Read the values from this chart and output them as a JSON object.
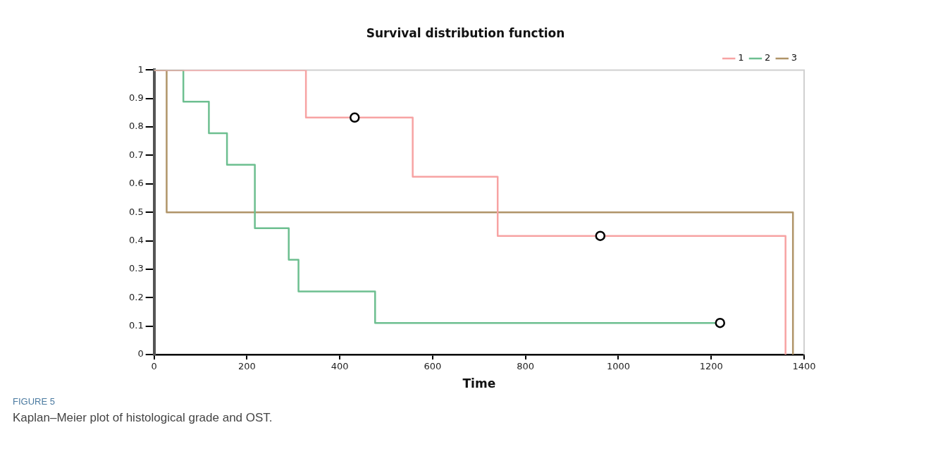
{
  "chart_data": {
    "type": "step",
    "title": "Survival distribution function",
    "xlabel": "Time",
    "annotations": [
      "FIGURE 5",
      "Kaplan–Meier plot of histological grade and OST."
    ],
    "series": [
      {
        "name": "1",
        "color": "#f7a3a3",
        "x": [
          0,
          327,
          557,
          740,
          1360
        ],
        "values": [
          1,
          0.833,
          0.625,
          0.417,
          0
        ]
      },
      {
        "name": "2",
        "color": "#6dbf90",
        "x": [
          0,
          63,
          118,
          157,
          217,
          290,
          311,
          476,
          1219
        ],
        "values": [
          1,
          0.889,
          0.778,
          0.667,
          0.444,
          0.333,
          0.222,
          0.111,
          0.111
        ]
      },
      {
        "name": "3",
        "color": "#b09468",
        "x": [
          0,
          27,
          1376
        ],
        "values": [
          1,
          0.5,
          0
        ]
      },
      {
        "type": "scatter",
        "color": "#000000",
        "marker": "circle",
        "x": [
          432,
          961,
          1219
        ],
        "values": [
          0.833,
          0.417,
          0.111
        ]
      }
    ],
    "xlim": [
      0,
      1400
    ],
    "xticks": [
      0,
      200,
      400,
      600,
      800,
      1000,
      1200,
      1400
    ],
    "ylim": [
      0,
      1
    ],
    "yticks": [
      0,
      0.1,
      0.2,
      0.3,
      0.4,
      0.5,
      0.6,
      0.7,
      0.8,
      0.9,
      1
    ],
    "grid": false,
    "legend": "top right"
  }
}
